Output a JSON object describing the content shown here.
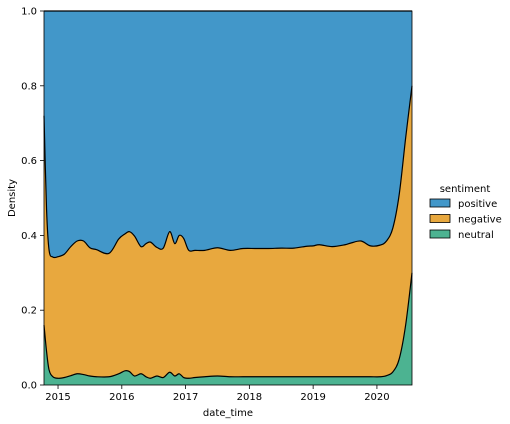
{
  "chart_data": {
    "type": "area",
    "stacked": true,
    "normalized": true,
    "xlabel": "date_time",
    "ylabel": "Density",
    "xlim": [
      2014.78,
      2020.55
    ],
    "ylim": [
      0,
      1
    ],
    "x_ticks": [
      2015,
      2016,
      2017,
      2018,
      2019,
      2020
    ],
    "x_tick_labels": [
      "2015",
      "2016",
      "2017",
      "2018",
      "2019",
      "2020"
    ],
    "y_ticks": [
      0,
      0.2,
      0.4,
      0.6,
      0.8,
      1.0
    ],
    "y_tick_labels": [
      "0.0",
      "0.2",
      "0.4",
      "0.6",
      "0.8",
      "1.0"
    ],
    "grid": false,
    "legend": {
      "title": "sentiment",
      "placement": "right"
    },
    "x": [
      2014.78,
      2014.82,
      2014.86,
      2014.92,
      2015.0,
      2015.1,
      2015.2,
      2015.3,
      2015.4,
      2015.5,
      2015.6,
      2015.8,
      2015.95,
      2016.05,
      2016.12,
      2016.2,
      2016.3,
      2016.38,
      2016.45,
      2016.55,
      2016.65,
      2016.75,
      2016.83,
      2016.9,
      2016.97,
      2017.05,
      2017.15,
      2017.3,
      2017.5,
      2017.7,
      2017.9,
      2018.1,
      2018.3,
      2018.5,
      2018.7,
      2018.9,
      2019.0,
      2019.1,
      2019.3,
      2019.5,
      2019.6,
      2019.75,
      2019.9,
      2020.05,
      2020.15,
      2020.25,
      2020.35,
      2020.45,
      2020.55
    ],
    "series": [
      {
        "name": "neutral",
        "color": "#4cb391",
        "values": [
          0.16,
          0.09,
          0.04,
          0.022,
          0.018,
          0.02,
          0.025,
          0.03,
          0.028,
          0.024,
          0.022,
          0.022,
          0.03,
          0.038,
          0.036,
          0.024,
          0.03,
          0.022,
          0.018,
          0.024,
          0.02,
          0.034,
          0.024,
          0.03,
          0.02,
          0.018,
          0.02,
          0.022,
          0.024,
          0.022,
          0.022,
          0.022,
          0.022,
          0.022,
          0.022,
          0.022,
          0.022,
          0.022,
          0.022,
          0.022,
          0.022,
          0.022,
          0.022,
          0.022,
          0.025,
          0.035,
          0.07,
          0.16,
          0.3
        ]
      },
      {
        "name": "negative",
        "color": "#e8a83e",
        "values": [
          0.56,
          0.38,
          0.32,
          0.32,
          0.325,
          0.33,
          0.345,
          0.355,
          0.357,
          0.343,
          0.34,
          0.33,
          0.36,
          0.366,
          0.374,
          0.374,
          0.34,
          0.356,
          0.364,
          0.344,
          0.346,
          0.376,
          0.354,
          0.37,
          0.372,
          0.342,
          0.34,
          0.338,
          0.343,
          0.338,
          0.343,
          0.343,
          0.343,
          0.344,
          0.344,
          0.349,
          0.35,
          0.353,
          0.348,
          0.353,
          0.358,
          0.363,
          0.35,
          0.352,
          0.36,
          0.385,
          0.44,
          0.5,
          0.5
        ]
      },
      {
        "name": "positive",
        "color": "#4297c9",
        "values": [
          0.28,
          0.53,
          0.64,
          0.658,
          0.657,
          0.65,
          0.63,
          0.615,
          0.615,
          0.633,
          0.638,
          0.648,
          0.61,
          0.596,
          0.59,
          0.602,
          0.63,
          0.622,
          0.618,
          0.632,
          0.634,
          0.59,
          0.622,
          0.6,
          0.608,
          0.64,
          0.64,
          0.64,
          0.633,
          0.64,
          0.635,
          0.635,
          0.635,
          0.634,
          0.634,
          0.629,
          0.628,
          0.625,
          0.63,
          0.625,
          0.62,
          0.615,
          0.628,
          0.626,
          0.615,
          0.58,
          0.49,
          0.34,
          0.2
        ]
      }
    ]
  }
}
